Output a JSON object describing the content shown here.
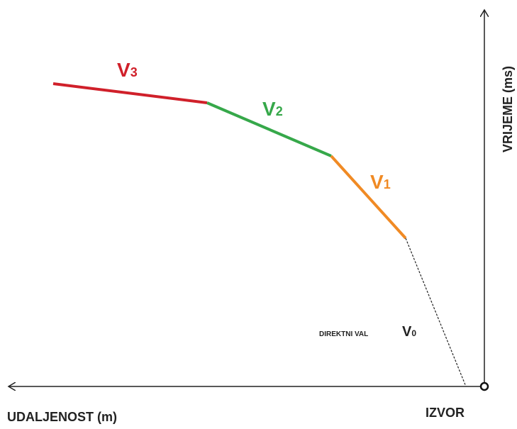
{
  "axes": {
    "y_label": "VRIJEME (ms)",
    "x_label": "UDALJENOST (m)",
    "origin_label": "IZVOR"
  },
  "segments": [
    {
      "symbol": "V",
      "subscript": "3"
    },
    {
      "symbol": "V",
      "subscript": "2"
    },
    {
      "symbol": "V",
      "subscript": "1"
    }
  ],
  "direct_wave": {
    "label": "DIREKTNI VAL",
    "symbol": "V",
    "subscript": "0"
  }
}
